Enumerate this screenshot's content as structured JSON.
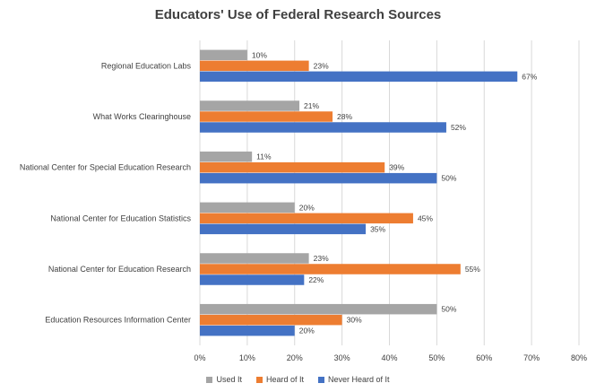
{
  "chart_data": {
    "type": "bar",
    "orientation": "horizontal",
    "title": "Educators' Use of Federal Research Sources",
    "categories": [
      "Regional Education Labs",
      "What Works Clearinghouse",
      "National Center for Special Education Research",
      "National Center for Education Statistics",
      "National Center for Education Research",
      "Education Resources Information Center"
    ],
    "series": [
      {
        "name": "Used It",
        "color": "#a5a5a5",
        "values": [
          10,
          21,
          11,
          20,
          23,
          50
        ],
        "labels": [
          "10%",
          "21%",
          "11%",
          "20%",
          "23%",
          "50%"
        ]
      },
      {
        "name": "Heard of It",
        "color": "#ed7d31",
        "values": [
          23,
          28,
          39,
          45,
          55,
          30
        ],
        "labels": [
          "23%",
          "28%",
          "39%",
          "45%",
          "55%",
          "30%"
        ]
      },
      {
        "name": "Never Heard of It",
        "color": "#4472c4",
        "values": [
          67,
          52,
          50,
          35,
          22,
          20
        ],
        "labels": [
          "67%",
          "52%",
          "50%",
          "35%",
          "22%",
          "20%"
        ]
      }
    ],
    "xlim": [
      0,
      80
    ],
    "xticks": [
      0,
      10,
      20,
      30,
      40,
      50,
      60,
      70,
      80
    ],
    "xtick_labels": [
      "0%",
      "10%",
      "20%",
      "30%",
      "40%",
      "50%",
      "60%",
      "70%",
      "80%"
    ],
    "grid": "vertical",
    "legend_position": "bottom"
  }
}
